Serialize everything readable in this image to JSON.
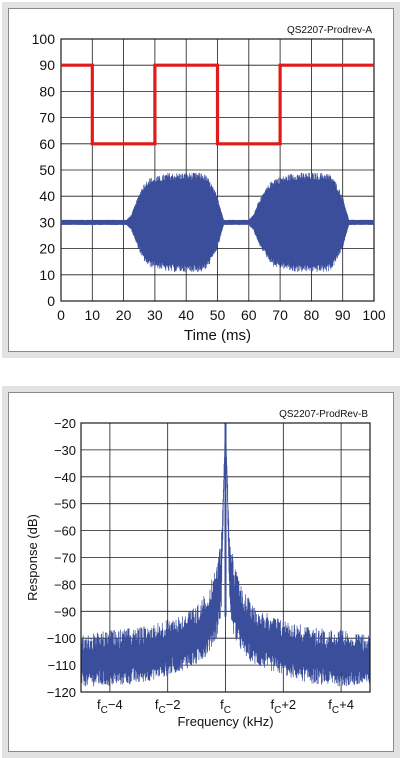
{
  "chart_data": [
    {
      "type": "line",
      "id_label": "QS2207-Prodrev-A",
      "xlabel": "Time (ms)",
      "ylabel": "",
      "xlim": [
        0,
        100
      ],
      "ylim": [
        0,
        100
      ],
      "xticks": [
        "0",
        "10",
        "20",
        "30",
        "40",
        "50",
        "60",
        "70",
        "80",
        "90",
        "100"
      ],
      "yticks": [
        "0",
        "10",
        "20",
        "30",
        "40",
        "50",
        "60",
        "70",
        "80",
        "90",
        "100"
      ],
      "grid": true,
      "series": [
        {
          "color": "#e01b1b",
          "style": "square-wave",
          "x": [
            0,
            10,
            10,
            30,
            30,
            50,
            50,
            70,
            70,
            100
          ],
          "y": [
            90,
            90,
            60,
            60,
            90,
            90,
            60,
            60,
            90,
            90
          ]
        },
        {
          "color": "#3a4e9c",
          "style": "modulated-envelope",
          "center": 30,
          "envelope_x": [
            0,
            21,
            22.5,
            24,
            26,
            28,
            32,
            34,
            35.5,
            37,
            45,
            46.5,
            48,
            50,
            52,
            60,
            61.5,
            63,
            66,
            68,
            72,
            74,
            75.5,
            77,
            85,
            86.5,
            88,
            90,
            92,
            100
          ],
          "envelope_y": [
            1,
            1,
            3,
            8,
            14,
            17,
            18,
            19,
            19,
            19,
            19,
            18,
            15,
            10,
            1,
            1,
            3,
            8,
            14,
            17,
            18,
            19,
            19,
            19,
            19,
            18,
            15,
            10,
            1,
            1
          ]
        }
      ]
    },
    {
      "type": "line",
      "id_label": "QS2207-ProdRev-B",
      "xlabel": "Frequency (kHz)",
      "ylabel": "Response (dB)",
      "xlim": [
        -5,
        5
      ],
      "ylim": [
        -120,
        -20
      ],
      "xticks": [
        {
          "value": -4,
          "base": "f",
          "sub": "C",
          "suffix": "−4"
        },
        {
          "value": -2,
          "base": "f",
          "sub": "C",
          "suffix": "−2"
        },
        {
          "value": 0,
          "base": "f",
          "sub": "C",
          "suffix": ""
        },
        {
          "value": 2,
          "base": "f",
          "sub": "C",
          "suffix": "+2"
        },
        {
          "value": 4,
          "base": "f",
          "sub": "C",
          "suffix": "+4"
        }
      ],
      "yticks": [
        "-20",
        "-30",
        "-40",
        "-50",
        "-60",
        "-70",
        "-80",
        "-90",
        "-100",
        "-110",
        "-120"
      ],
      "grid": true,
      "series": [
        {
          "color": "#3a4e9c",
          "style": "noisy-spectrum",
          "peak": {
            "x": 0,
            "y": -20
          },
          "x": [
            -5,
            -4,
            -3,
            -2,
            -1.5,
            -1,
            -0.6,
            -0.3,
            -0.15,
            0,
            0.15,
            0.3,
            0.6,
            1,
            1.5,
            2,
            3,
            4,
            5
          ],
          "upper": [
            -99,
            -97,
            -96,
            -93,
            -91,
            -88,
            -82,
            -73,
            -62,
            -20,
            -62,
            -73,
            -82,
            -88,
            -91,
            -93,
            -96,
            -97,
            -99
          ],
          "lower": [
            -118,
            -118,
            -117,
            -114,
            -112,
            -110,
            -106,
            -100,
            -92,
            -20,
            -92,
            -100,
            -106,
            -110,
            -112,
            -114,
            -117,
            -118,
            -118
          ]
        }
      ]
    }
  ]
}
